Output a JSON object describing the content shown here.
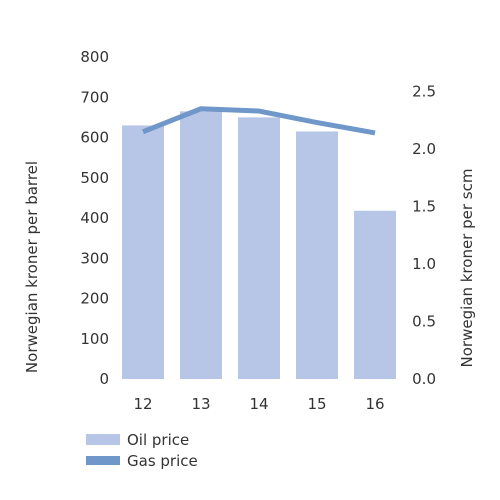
{
  "chart_data": {
    "type": "bar",
    "categories": [
      "12",
      "13",
      "14",
      "15",
      "16"
    ],
    "series": [
      {
        "name": "Oil price",
        "type": "bar",
        "axis": "left",
        "values": [
          630,
          665,
          650,
          615,
          418
        ],
        "color": "#b7c6e6"
      },
      {
        "name": "Gas price",
        "type": "line",
        "axis": "right",
        "values": [
          2.15,
          2.35,
          2.33,
          2.23,
          2.14
        ],
        "color": "#7097c9"
      }
    ],
    "y_left": {
      "label": "Norwegian kroner per barrel",
      "lim": [
        0,
        800
      ],
      "ticks": [
        "0",
        "100",
        "200",
        "300",
        "400",
        "500",
        "600",
        "700",
        "800"
      ]
    },
    "y_right": {
      "label": "Norwegian kroner per scm",
      "lim": [
        0,
        2.8
      ],
      "ticks": [
        "0.0",
        "0.5",
        "1.0",
        "1.5",
        "2.0",
        "2.5"
      ]
    },
    "legend_position": "bottom-left",
    "grid": false
  }
}
